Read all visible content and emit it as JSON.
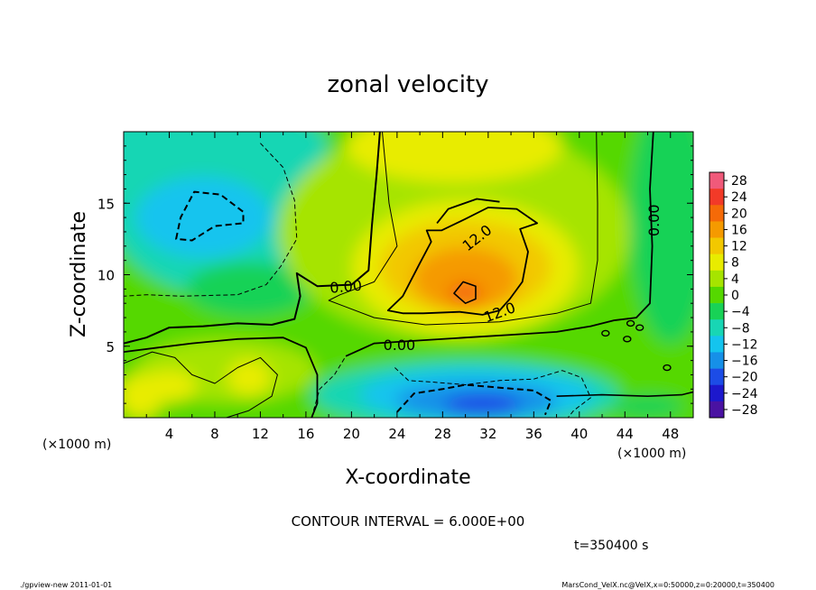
{
  "chart_data": {
    "type": "heatmap",
    "title": "zonal velocity",
    "xlabel": "X-coordinate",
    "ylabel": "Z-coordinate",
    "x_unit": "(×1000 m)",
    "y_unit": "(×1000 m)",
    "xlim": [
      0,
      50
    ],
    "ylim": [
      0,
      20
    ],
    "x_ticks": [
      "4",
      "8",
      "12",
      "16",
      "20",
      "24",
      "28",
      "32",
      "36",
      "40",
      "44",
      "48"
    ],
    "y_ticks": [
      "5",
      "10",
      "15"
    ],
    "colorbar": {
      "labels": [
        "28",
        "24",
        "20",
        "16",
        "12",
        "8",
        "4",
        "0",
        "−4",
        "−8",
        "−12",
        "−16",
        "−20",
        "−24",
        "−28"
      ],
      "colors": [
        "#f05a7a",
        "#f23a28",
        "#f56a08",
        "#f59a00",
        "#f2c800",
        "#e8ec00",
        "#a6e400",
        "#55d800",
        "#18d256",
        "#18d6b4",
        "#14c4ee",
        "#1690e8",
        "#1c4ce6",
        "#1c18cc",
        "#4a12a2"
      ]
    },
    "contour_labels": [
      {
        "text": "0.00",
        "x": 19.5,
        "z": 9.2,
        "rot": -5
      },
      {
        "text": "0.00",
        "x": 24.2,
        "z": 5.1,
        "rot": 0
      },
      {
        "text": "12.0",
        "x": 31,
        "z": 12.6,
        "rot": -38
      },
      {
        "text": "12.0",
        "x": 33,
        "z": 7.4,
        "rot": -20
      },
      {
        "text": "0.00",
        "x": 46.5,
        "z": 13.8,
        "rot": -90
      }
    ],
    "contour_interval_text": "CONTOUR INTERVAL = 6.000E+00",
    "time_text": "t=350400 s"
  },
  "footer": {
    "left": "./gpview-new  2011-01-01",
    "right": "MarsCond_VelX.nc@VelX,x=0:50000,z=0:20000,t=350400"
  },
  "contour_line_color": "#000000"
}
